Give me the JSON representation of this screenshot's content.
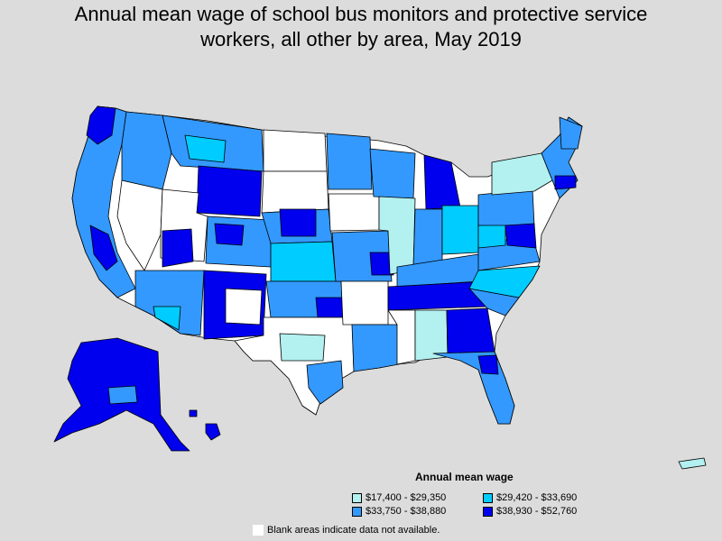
{
  "title": {
    "line1": "Annual mean wage of school bus monitors and protective service",
    "line2": "workers, all other by area, May 2019"
  },
  "legend": {
    "title": "Annual mean wage",
    "items": [
      {
        "label": "$17,400 - $29,350",
        "color": "#b3f0f0"
      },
      {
        "label": "$29,420 - $33,690",
        "color": "#00ccff"
      },
      {
        "label": "$33,750 - $38,880",
        "color": "#3399ff"
      },
      {
        "label": "$38,930 - $52,760",
        "color": "#0000ee"
      }
    ],
    "blank_note": "Blank areas indicate data not available.",
    "blank_color": "#ffffff"
  },
  "colors": {
    "background": "#dcdcdc",
    "border": "#000000"
  }
}
